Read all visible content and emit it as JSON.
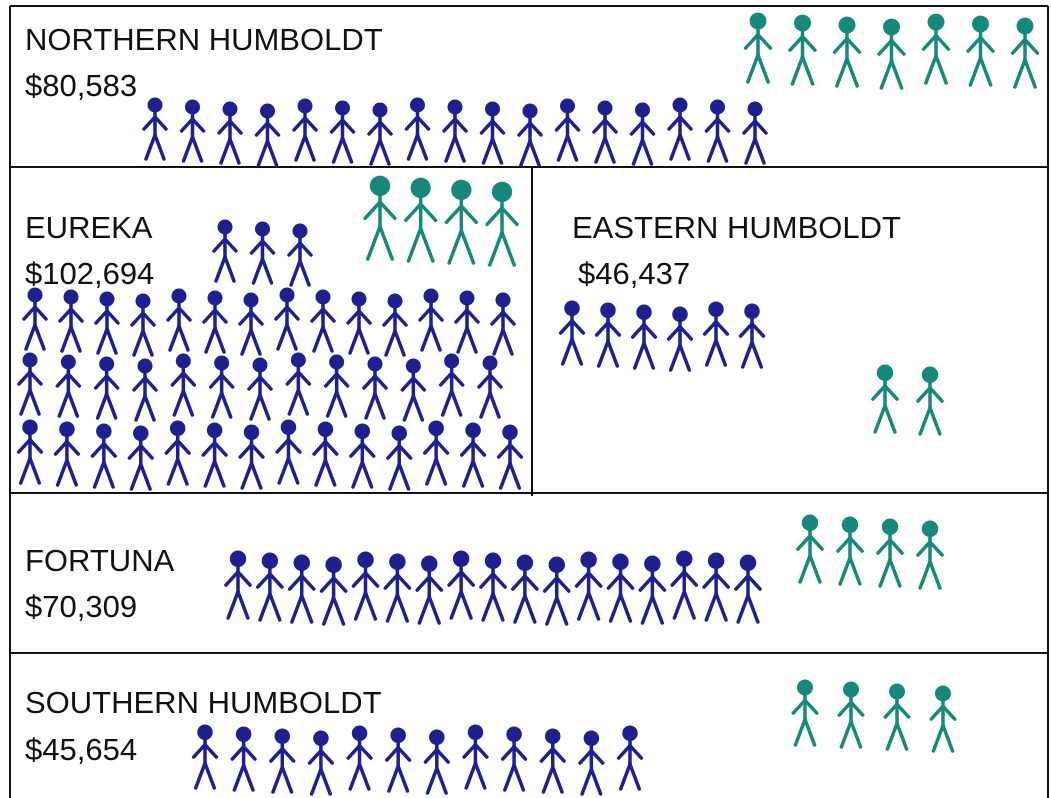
{
  "regions": [
    {
      "name": "NORTHERN HUMBOLDT",
      "value": "$80,583"
    },
    {
      "name": "EUREKA",
      "value": "$102,694"
    },
    {
      "name": "EASTERN HUMBOLDT",
      "value": "$46,437"
    },
    {
      "name": "FORTUNA",
      "value": "$70,309"
    },
    {
      "name": "SOUTHERN HUMBOLDT",
      "value": "$45,654"
    }
  ]
}
